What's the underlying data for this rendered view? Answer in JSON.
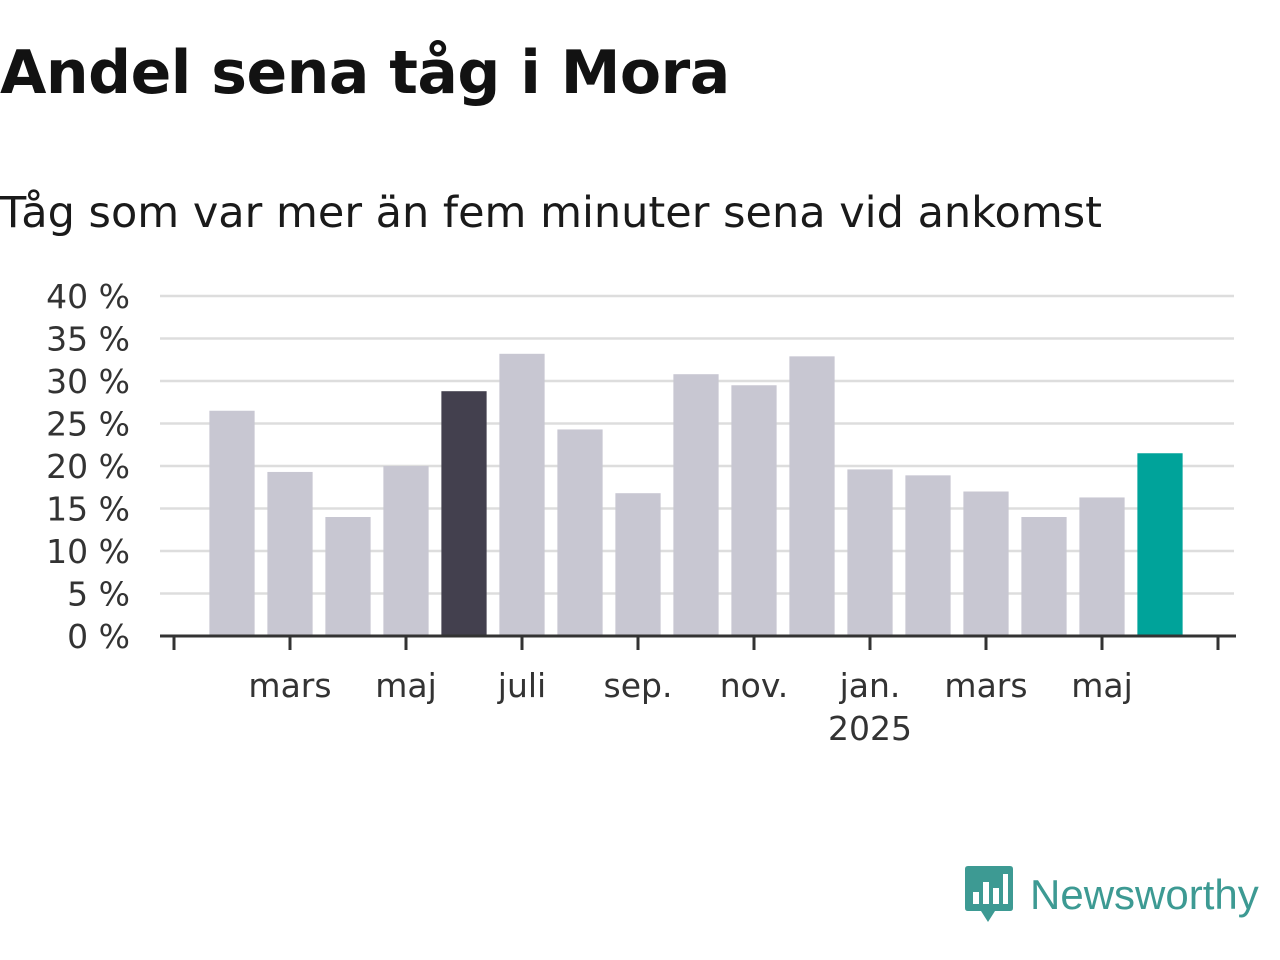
{
  "header": {
    "title": "Andel sena tåg i Mora",
    "subtitle": "Tåg som var mer än fem minuter sena vid ankomst"
  },
  "brand": {
    "name": "Newsworthy",
    "icon": "newsworthy-logo-icon",
    "color": "#3d9a93"
  },
  "chart_data": {
    "type": "bar",
    "categories": [
      "2024-02",
      "2024-03",
      "2024-04",
      "2024-05",
      "2024-06",
      "2024-07",
      "2024-08",
      "2024-09",
      "2024-10",
      "2024-11",
      "2024-12",
      "2025-01",
      "2025-02",
      "2025-03",
      "2025-04",
      "2025-05",
      "2025-06"
    ],
    "values": [
      26.5,
      19.3,
      14.0,
      20.0,
      28.8,
      33.2,
      24.3,
      16.8,
      30.8,
      29.5,
      32.9,
      19.6,
      18.9,
      17.0,
      14.0,
      16.3,
      21.5
    ],
    "colors": {
      "default": "#c8c7d2",
      "previous_year": "#43404e",
      "latest": "#00a39a"
    },
    "highlight": {
      "2024-06": "previous_year",
      "2025-06": "latest"
    },
    "ylim": [
      0,
      40
    ],
    "yticks": [
      {
        "value": 0,
        "label": "0 %"
      },
      {
        "value": 5,
        "label": "5 %"
      },
      {
        "value": 10,
        "label": "10 %"
      },
      {
        "value": 15,
        "label": "15 %"
      },
      {
        "value": 20,
        "label": "20 %"
      },
      {
        "value": 25,
        "label": "25 %"
      },
      {
        "value": 30,
        "label": "30 %"
      },
      {
        "value": 35,
        "label": "35 %"
      },
      {
        "value": 40,
        "label": "40 %"
      }
    ],
    "xticks": [
      {
        "category": "2024-03",
        "label": "mars"
      },
      {
        "category": "2024-05",
        "label": "maj"
      },
      {
        "category": "2024-07",
        "label": "juli"
      },
      {
        "category": "2024-09",
        "label": "sep."
      },
      {
        "category": "2024-11",
        "label": "nov."
      },
      {
        "category": "2025-01",
        "label": "jan.",
        "year": "2025"
      },
      {
        "category": "2025-03",
        "label": "mars"
      },
      {
        "category": "2025-05",
        "label": "maj"
      }
    ],
    "grid": true,
    "gridColor": "#dddddd",
    "axisColor": "#333333",
    "xlabel": "",
    "ylabel": ""
  }
}
